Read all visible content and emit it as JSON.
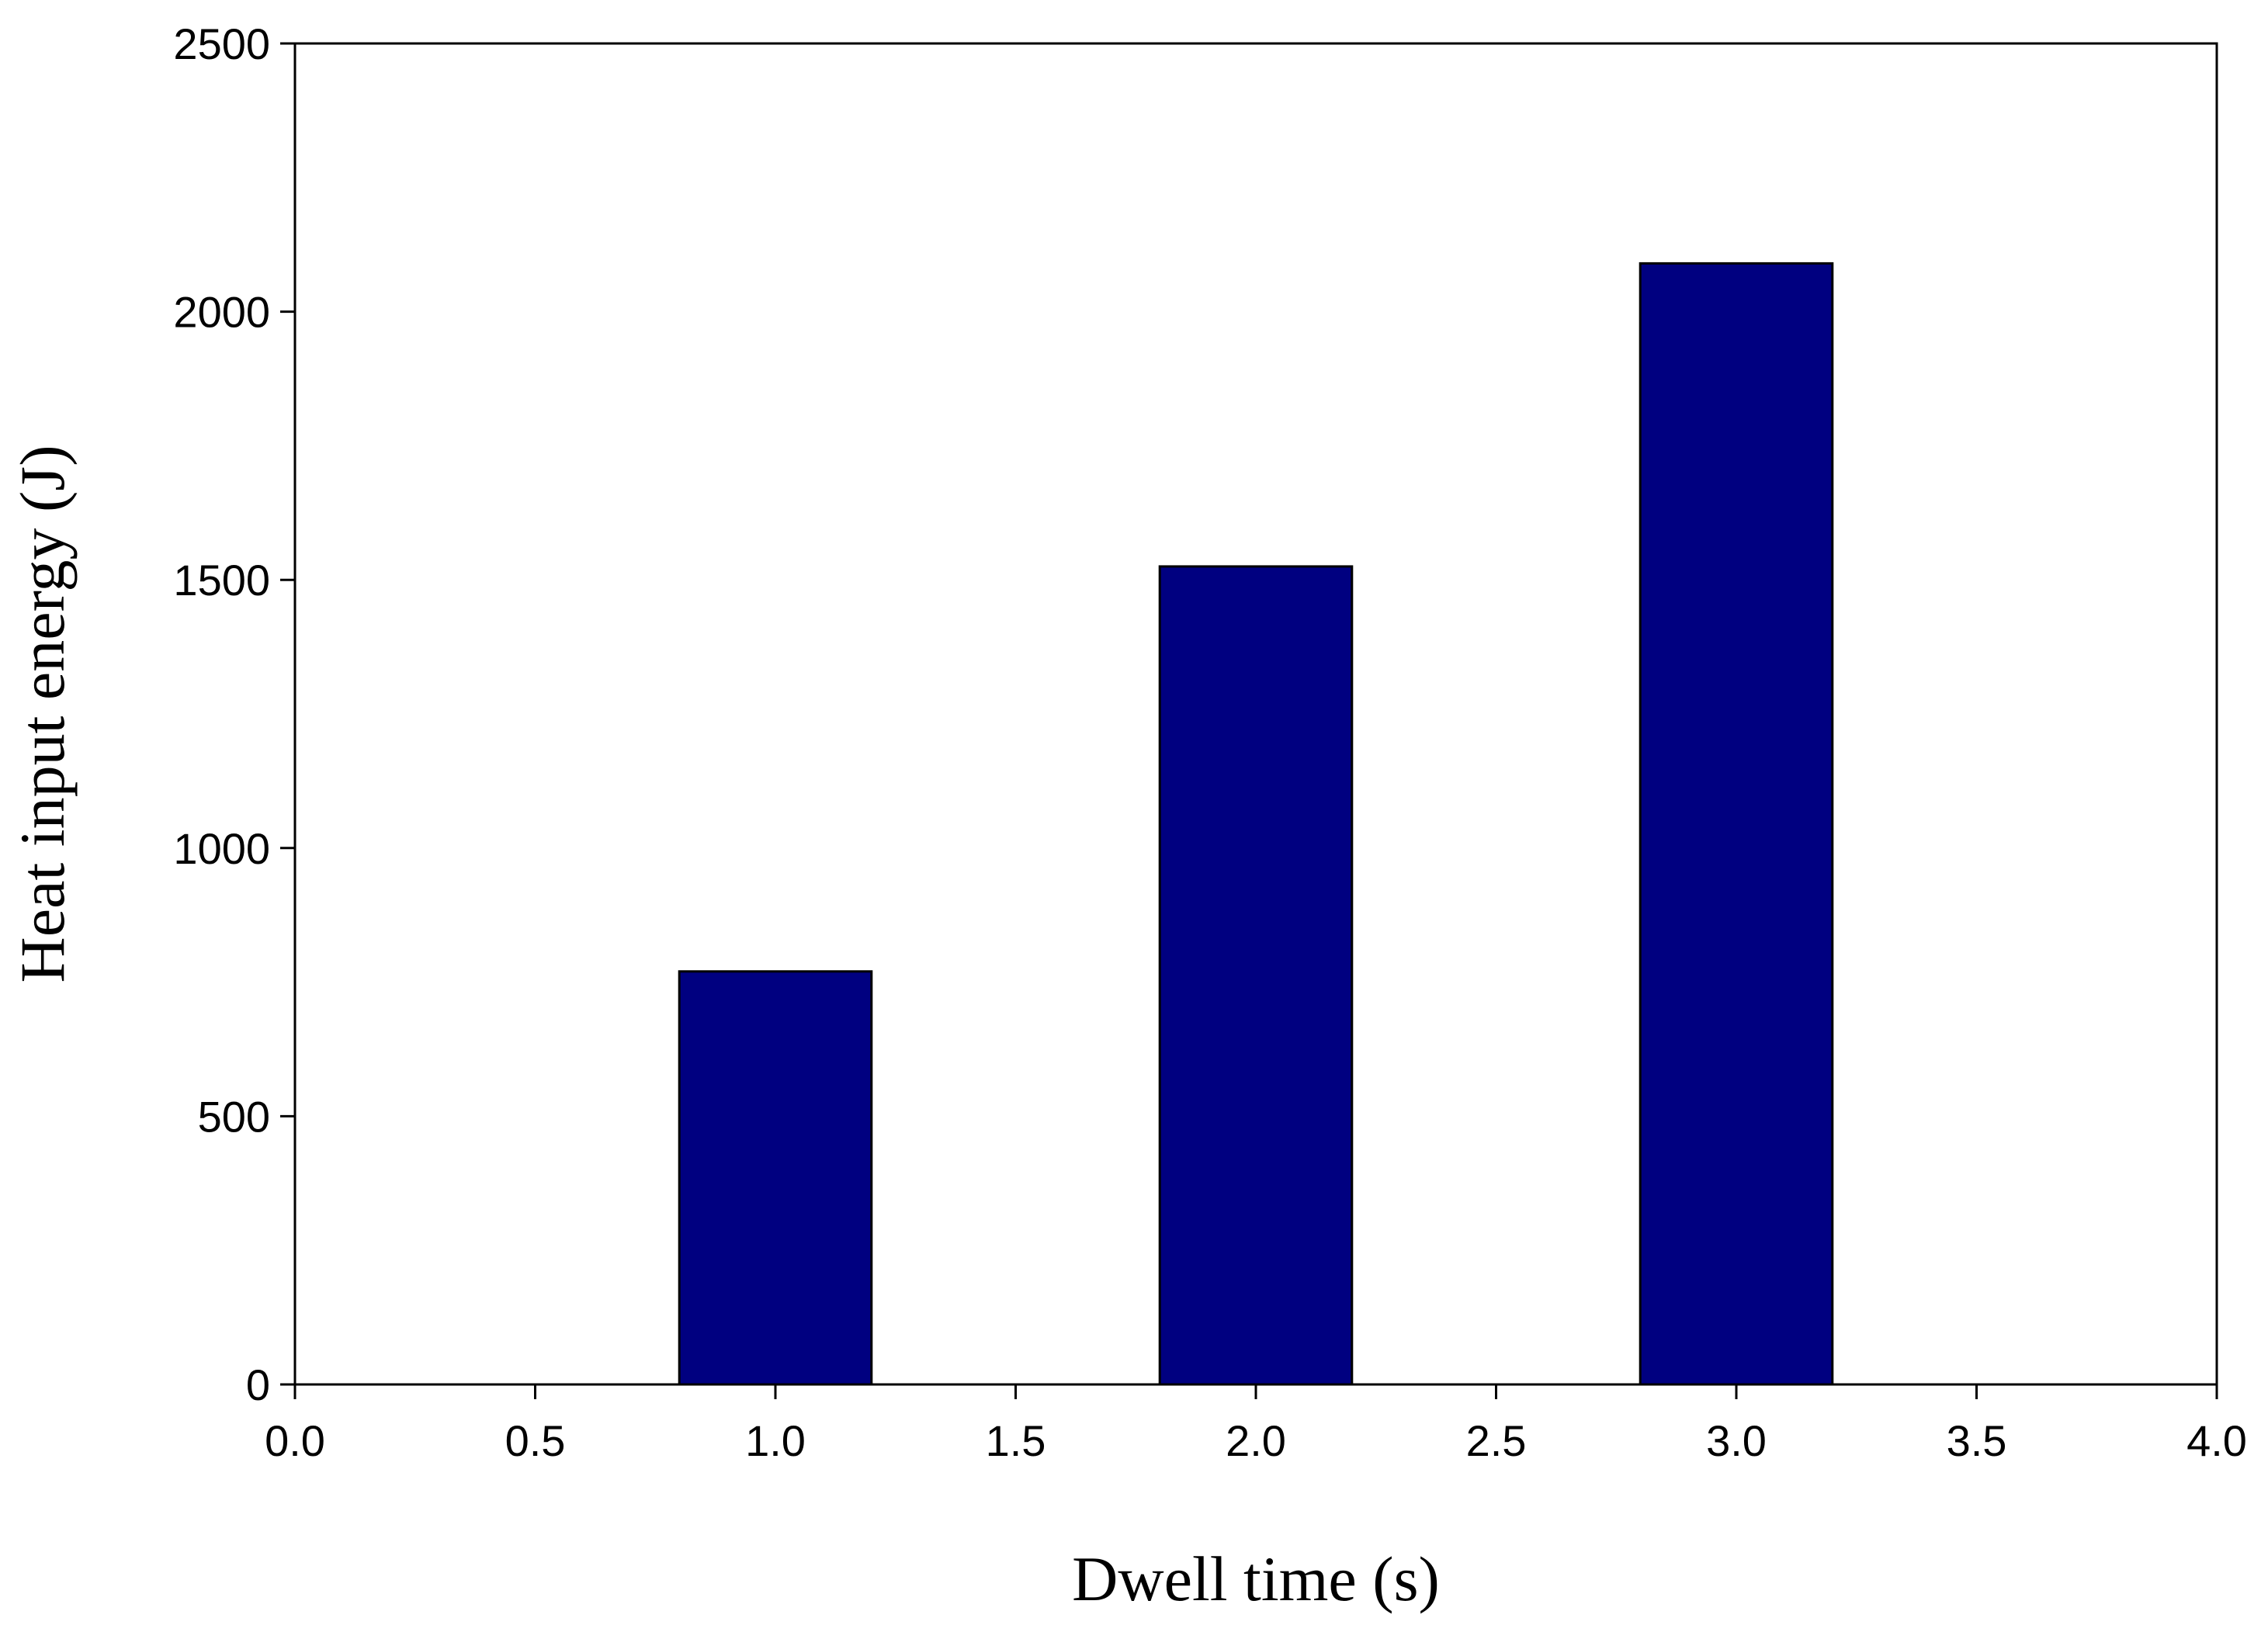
{
  "chart_data": {
    "type": "bar",
    "x": [
      1,
      2,
      3
    ],
    "values": [
      770,
      1525,
      2090
    ],
    "color": "#000080",
    "xlabel": "Dwell time (s)",
    "ylabel": "Heat input energy (J)",
    "xlim": [
      0,
      4
    ],
    "xticks": [
      {
        "value": 0,
        "label": "0.0"
      },
      {
        "value": 0.5,
        "label": "0.5"
      },
      {
        "value": 1,
        "label": "1.0"
      },
      {
        "value": 1.5,
        "label": "1.5"
      },
      {
        "value": 2,
        "label": "2.0"
      },
      {
        "value": 2.5,
        "label": "2.5"
      },
      {
        "value": 3,
        "label": "3.0"
      },
      {
        "value": 3.5,
        "label": "3.5"
      },
      {
        "value": 4,
        "label": "4.0"
      }
    ],
    "ylim": [
      0,
      2500
    ],
    "yticks": [
      0,
      500,
      1000,
      1500,
      2000,
      2500
    ],
    "grid": false
  }
}
